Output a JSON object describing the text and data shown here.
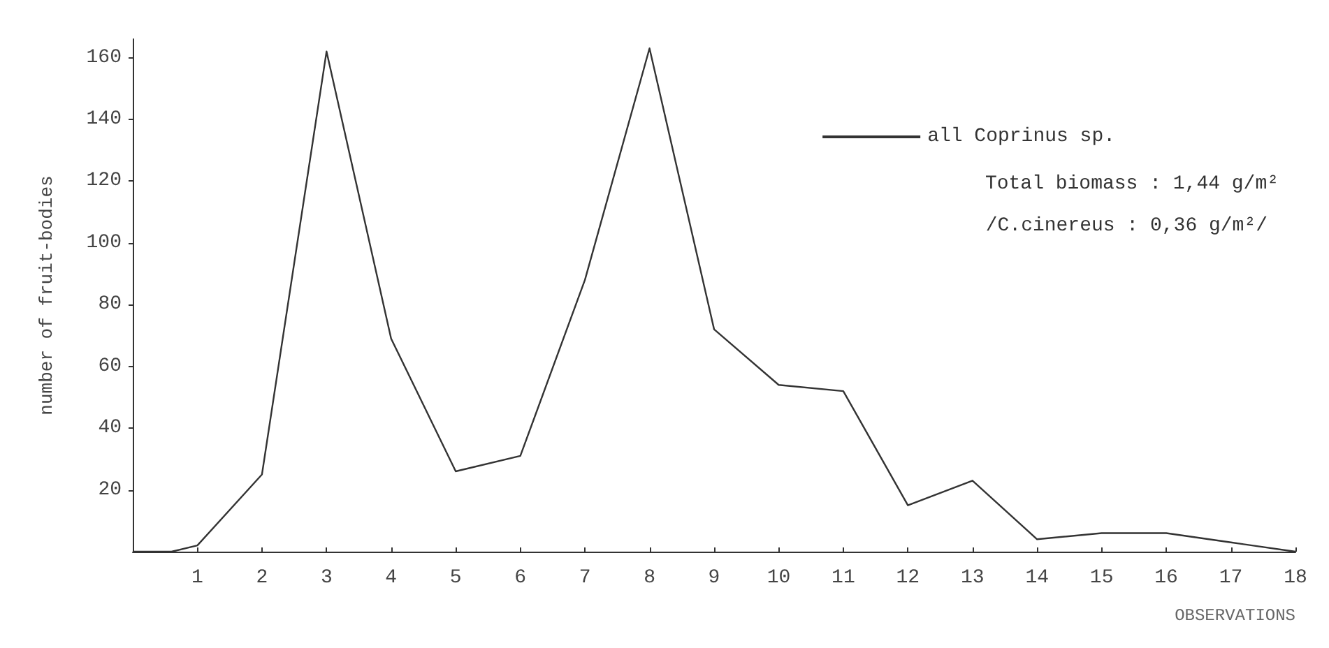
{
  "chart_data": {
    "type": "line",
    "xlabel": "OBSERVATIONS",
    "ylabel": "number of fruit-bodies",
    "x": [
      0,
      0.6,
      1,
      2,
      3,
      4,
      5,
      6,
      7,
      8,
      9,
      10,
      11,
      12,
      13,
      14,
      15,
      16,
      17,
      18
    ],
    "series": [
      {
        "name": "all Coprinus sp.",
        "color": "#333333",
        "values": [
          0,
          0,
          2,
          25,
          162,
          69,
          26,
          31,
          88,
          163,
          72,
          54,
          52,
          15,
          23,
          4,
          6,
          6,
          3,
          0
        ]
      }
    ],
    "xlim": [
      0,
      18
    ],
    "xticks": [
      1,
      2,
      3,
      4,
      5,
      6,
      7,
      8,
      9,
      10,
      11,
      12,
      13,
      14,
      15,
      16,
      17,
      18
    ],
    "ylim": [
      0,
      166
    ],
    "yticks": [
      20,
      40,
      60,
      80,
      100,
      120,
      140,
      160
    ],
    "annotations": [
      "Total biomass : 1,44 g/m²",
      "/C.cinereus : 0,36 g/m²/"
    ],
    "legend": "top right",
    "grid": false,
    "marker": "none",
    "line_style": "solid"
  }
}
